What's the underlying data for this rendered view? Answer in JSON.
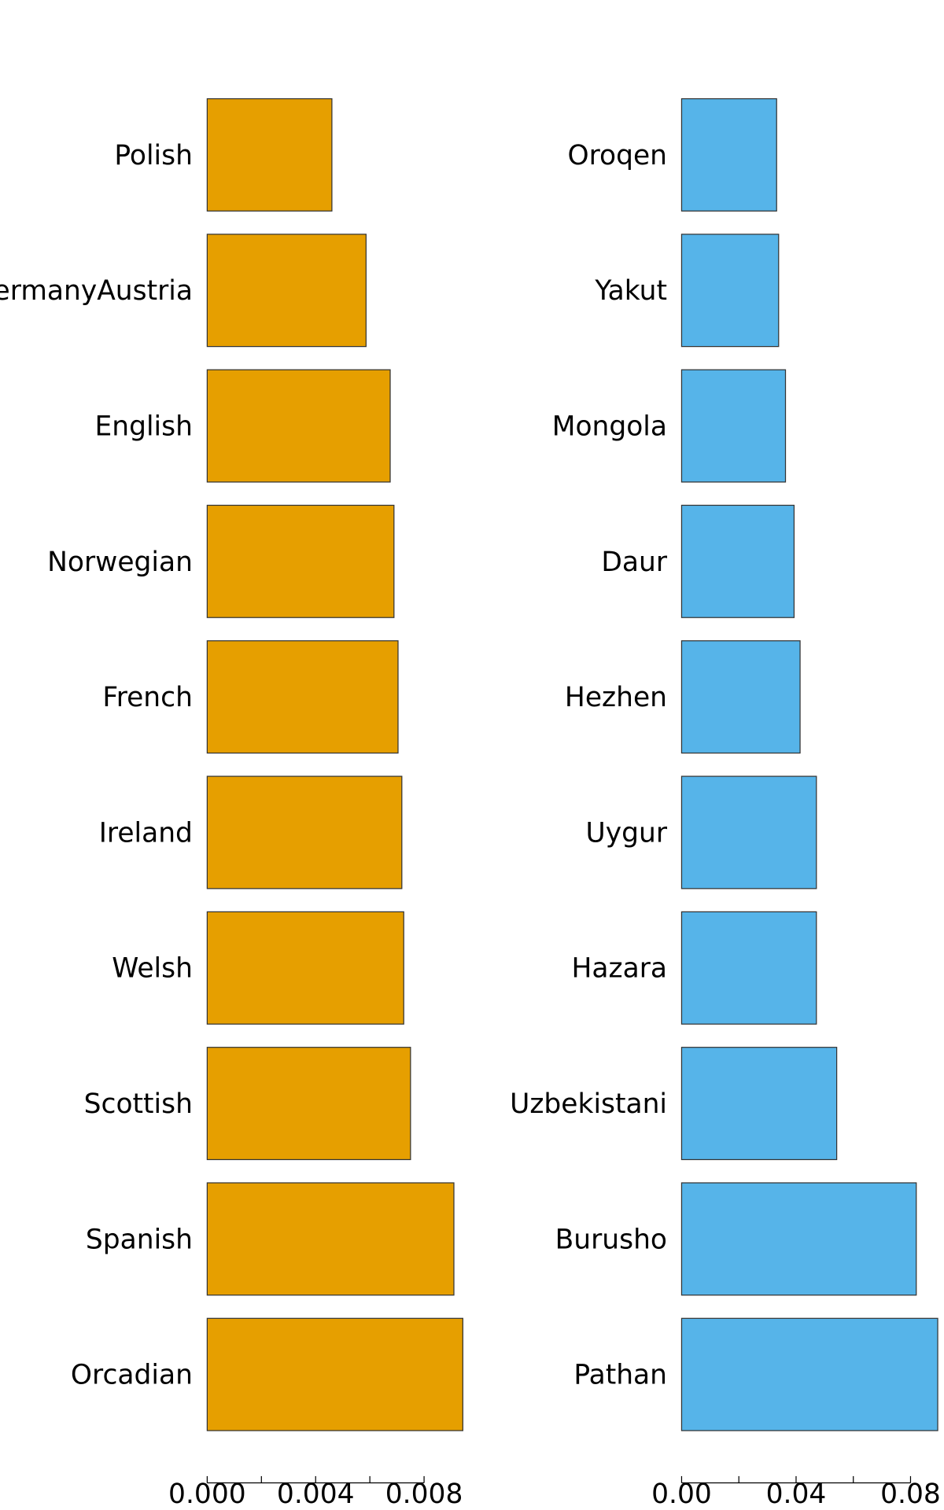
{
  "chart_data": [
    {
      "type": "barh",
      "categories": [
        "Polish",
        "GermanyAustria",
        "English",
        "Norwegian",
        "French",
        "Ireland",
        "Welsh",
        "Scottish",
        "Spanish",
        "Orcadian"
      ],
      "values": [
        0.0046,
        0.00586,
        0.00675,
        0.00689,
        0.00704,
        0.00718,
        0.00725,
        0.0075,
        0.0091,
        0.00943
      ],
      "color": "#E69F00",
      "xlim": [
        0,
        0.0095
      ],
      "xticks": [
        {
          "value": 0,
          "label": "0.000"
        },
        {
          "value": 0.004,
          "label": "0.004"
        },
        {
          "value": 0.008,
          "label": "0.008"
        }
      ],
      "xminorticks": [
        0.002,
        0.006
      ]
    },
    {
      "type": "barh",
      "categories": [
        "Oroqen",
        "Yakut",
        "Mongola",
        "Daur",
        "Hezhen",
        "Uygur",
        "Hazara",
        "Uzbekistani",
        "Burusho",
        "Pathan"
      ],
      "values": [
        0.0332,
        0.0339,
        0.0363,
        0.0393,
        0.0414,
        0.0471,
        0.0471,
        0.0542,
        0.082,
        0.0895
      ],
      "color": "#56B4E9",
      "xlim": [
        0,
        0.09
      ],
      "xticks": [
        {
          "value": 0,
          "label": "0.00"
        },
        {
          "value": 0.04,
          "label": "0.04"
        },
        {
          "value": 0.08,
          "label": "0.08"
        }
      ],
      "xminorticks": [
        0.02,
        0.06
      ]
    }
  ]
}
